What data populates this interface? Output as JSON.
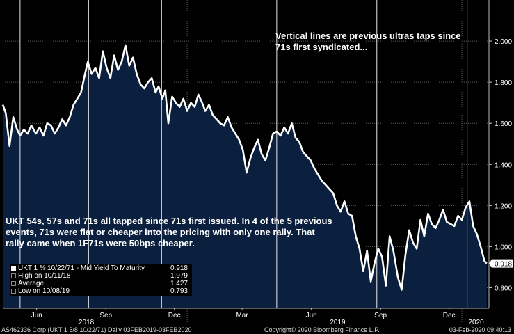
{
  "annotations": {
    "top": "Vertical lines are previous ultras taps since 71s first syndicated...",
    "middle": "UKT 54s, 57s and 71s all tapped since 71s first issued. In 4 of the 5 previous events, 71s were flat or cheaper into the pricing with only one rally. That rally came when 1F71s were 50bps cheaper."
  },
  "legend": {
    "rows": [
      {
        "label": "UKT 1 ⅝  10/22/71 - Mid Yield To Maturity",
        "value": "0.918"
      },
      {
        "label": "High on 10/11/18",
        "value": "1.979"
      },
      {
        "label": "Average",
        "value": "1.427"
      },
      {
        "label": "Low on 10/08/19",
        "value": "0.793"
      }
    ]
  },
  "footer": {
    "left": "AS462336 Corp (UKT 1 5/8 10/22/71)  Daily 03FEB2019-03FEB2020",
    "center": "Copyright© 2020 Bloomberg Finance L.P.",
    "right": "03-Feb-2020 09:40:13"
  },
  "colors": {
    "background": "#000000",
    "fill": "#0b1f3e",
    "line": "#ffffff",
    "grid": "#5a5a5a"
  },
  "chart_data": {
    "type": "area",
    "series": [
      {
        "name": "UKT 1 ⅝  10/22/71 - Mid Yield To Maturity",
        "x": [
          "2018-05-01",
          "2018-05-05",
          "2018-05-10",
          "2018-05-15",
          "2018-05-20",
          "2018-05-24",
          "2018-05-29",
          "2018-06-03",
          "2018-06-08",
          "2018-06-14",
          "2018-06-19",
          "2018-06-24",
          "2018-06-29",
          "2018-07-04",
          "2018-07-09",
          "2018-07-14",
          "2018-07-19",
          "2018-07-24",
          "2018-07-29",
          "2018-08-03",
          "2018-08-08",
          "2018-08-13",
          "2018-08-17",
          "2018-08-22",
          "2018-08-27",
          "2018-09-01",
          "2018-09-06",
          "2018-09-11",
          "2018-09-16",
          "2018-09-21",
          "2018-09-26",
          "2018-10-01",
          "2018-10-06",
          "2018-10-11",
          "2018-10-16",
          "2018-10-21",
          "2018-10-26",
          "2018-10-31",
          "2018-11-05",
          "2018-11-10",
          "2018-11-15",
          "2018-11-20",
          "2018-11-24",
          "2018-11-29",
          "2018-12-03",
          "2018-12-07",
          "2018-12-12",
          "2018-12-17",
          "2018-12-22",
          "2018-12-27",
          "2019-01-01",
          "2019-01-06",
          "2019-01-11",
          "2019-01-16",
          "2019-01-21",
          "2019-01-25",
          "2019-01-30",
          "2019-02-04",
          "2019-02-09",
          "2019-02-14",
          "2019-02-19",
          "2019-02-24",
          "2019-03-01",
          "2019-03-06",
          "2019-03-11",
          "2019-03-16",
          "2019-03-21",
          "2019-03-26",
          "2019-03-31",
          "2019-04-05",
          "2019-04-10",
          "2019-04-15",
          "2019-04-20",
          "2019-04-25",
          "2019-04-30",
          "2019-05-05",
          "2019-05-10",
          "2019-05-15",
          "2019-05-20",
          "2019-05-25",
          "2019-05-30",
          "2019-06-04",
          "2019-06-09",
          "2019-06-14",
          "2019-06-19",
          "2019-06-24",
          "2019-06-29",
          "2019-07-04",
          "2019-07-09",
          "2019-07-14",
          "2019-07-19",
          "2019-07-24",
          "2019-07-29",
          "2019-08-03",
          "2019-08-08",
          "2019-08-13",
          "2019-08-18",
          "2019-08-23",
          "2019-08-28",
          "2019-09-02",
          "2019-09-07",
          "2019-09-12",
          "2019-09-17",
          "2019-09-22",
          "2019-09-27",
          "2019-10-02",
          "2019-10-08",
          "2019-10-13",
          "2019-10-18",
          "2019-10-23",
          "2019-10-28",
          "2019-11-02",
          "2019-11-07",
          "2019-11-12",
          "2019-11-17",
          "2019-11-22",
          "2019-11-27",
          "2019-12-02",
          "2019-12-07",
          "2019-12-12",
          "2019-12-17",
          "2019-12-22",
          "2019-12-27",
          "2020-01-01",
          "2020-01-06",
          "2020-01-11",
          "2020-01-16",
          "2020-01-21",
          "2020-01-26",
          "2020-01-31",
          "2020-02-03"
        ],
        "values": [
          1.69,
          1.65,
          1.49,
          1.63,
          1.57,
          1.54,
          1.57,
          1.55,
          1.59,
          1.55,
          1.58,
          1.54,
          1.6,
          1.59,
          1.55,
          1.58,
          1.62,
          1.59,
          1.63,
          1.69,
          1.72,
          1.75,
          1.82,
          1.9,
          1.84,
          1.87,
          1.82,
          1.95,
          1.87,
          1.82,
          1.93,
          1.86,
          1.9,
          1.98,
          1.88,
          1.92,
          1.84,
          1.79,
          1.77,
          1.8,
          1.82,
          1.75,
          1.78,
          1.72,
          1.76,
          1.6,
          1.73,
          1.7,
          1.68,
          1.72,
          1.66,
          1.7,
          1.68,
          1.74,
          1.7,
          1.66,
          1.69,
          1.64,
          1.62,
          1.6,
          1.59,
          1.63,
          1.58,
          1.55,
          1.52,
          1.47,
          1.36,
          1.43,
          1.48,
          1.52,
          1.45,
          1.42,
          1.48,
          1.55,
          1.56,
          1.54,
          1.58,
          1.55,
          1.6,
          1.53,
          1.51,
          1.46,
          1.44,
          1.42,
          1.38,
          1.35,
          1.32,
          1.3,
          1.28,
          1.26,
          1.2,
          1.17,
          1.22,
          1.16,
          1.15,
          1.05,
          0.99,
          0.88,
          0.98,
          0.83,
          0.92,
          0.99,
          0.95,
          0.81,
          1.05,
          0.98,
          0.85,
          0.79,
          0.96,
          1.08,
          1.02,
          0.99,
          1.13,
          1.05,
          1.16,
          1.11,
          1.09,
          1.13,
          1.18,
          1.12,
          1.11,
          1.1,
          1.15,
          1.13,
          1.19,
          1.22,
          1.1,
          1.06,
          1.0,
          0.93,
          0.918
        ]
      }
    ],
    "yticks": [
      "2.000",
      "1.800",
      "1.600",
      "1.400",
      "1.200",
      "1.000",
      "0.800"
    ],
    "ylim": [
      0.7,
      2.2
    ],
    "xlim": [
      "2018-05-01",
      "2020-02-06"
    ],
    "month_labels": [
      {
        "label": "Jun",
        "date": "2018-06-15"
      },
      {
        "label": "Sep",
        "date": "2018-09-15"
      },
      {
        "label": "Dec",
        "date": "2018-12-15"
      },
      {
        "label": "Mar",
        "date": "2019-03-15"
      },
      {
        "label": "Jun",
        "date": "2019-06-15"
      },
      {
        "label": "Sep",
        "date": "2019-09-15"
      },
      {
        "label": "Dec",
        "date": "2019-12-15"
      }
    ],
    "year_labels": [
      {
        "label": "2018",
        "date": "2018-08-20"
      },
      {
        "label": "2019",
        "date": "2019-07-20"
      },
      {
        "label": "2020",
        "date": "2020-01-20"
      }
    ],
    "year_dividers": [
      "2019-01-01",
      "2020-01-01"
    ],
    "vertical_lines": [
      "2018-05-24",
      "2018-08-23",
      "2018-11-28",
      "2019-04-30",
      "2019-09-10",
      "2020-01-08"
    ],
    "last_value": "0.918",
    "grid": true
  }
}
